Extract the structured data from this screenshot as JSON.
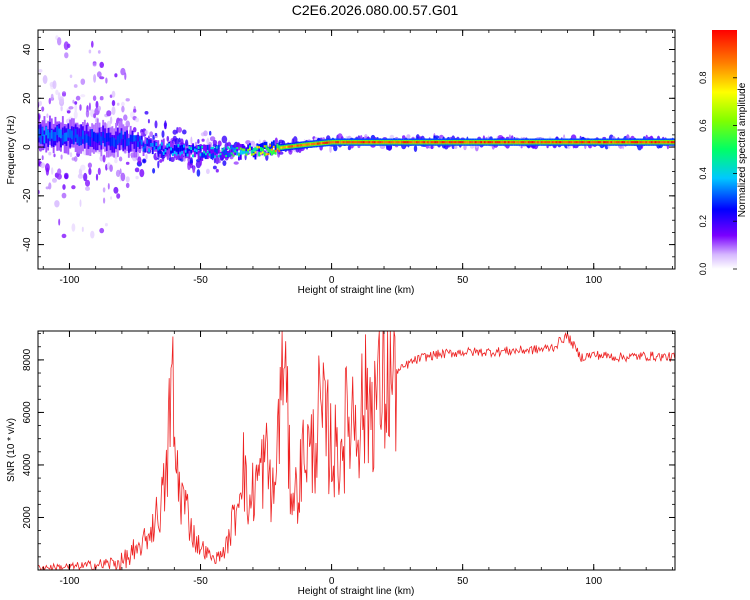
{
  "figure": {
    "title": "C2E6.2026.080.00.57.G01"
  },
  "colors": {
    "snr_line": "#ee2222",
    "spectrogram_peak": "#ff0000",
    "frame": "#000000"
  },
  "chart_data": [
    {
      "type": "heatmap",
      "xlabel": "Height of straight line (km)",
      "ylabel": "Frequency (Hz)",
      "xlim": [
        -112,
        131
      ],
      "ylim": [
        -50,
        48
      ],
      "xticks": [
        -100,
        -50,
        0,
        50,
        100
      ],
      "xtick_labels": [
        "-100",
        "-50",
        "0",
        "50",
        "100"
      ],
      "yticks": [
        -40,
        -20,
        0,
        20,
        40
      ],
      "ytick_labels": [
        "-40",
        "-20",
        "0",
        "20",
        "40"
      ],
      "colorbar": {
        "label": "Normalized spectral amplitude",
        "colormap": "rainbow",
        "range": [
          0,
          1
        ],
        "ticks": [
          0.0,
          0.2,
          0.4,
          0.6,
          0.8
        ],
        "tick_labels": [
          "0.0",
          "0.2",
          "0.4",
          "0.6",
          "0.8"
        ]
      },
      "ridge": [
        {
          "x": -104,
          "f": 5,
          "amp": 0.35
        },
        {
          "x": -92,
          "f": 4,
          "amp": 0.3
        },
        {
          "x": -80,
          "f": 3,
          "amp": 0.3
        },
        {
          "x": -72,
          "f": 1,
          "amp": 0.35
        },
        {
          "x": -62,
          "f": -1,
          "amp": 0.4
        },
        {
          "x": -50,
          "f": -2,
          "amp": 0.45
        },
        {
          "x": -40,
          "f": -2,
          "amp": 0.5
        },
        {
          "x": -32,
          "f": -2,
          "amp": 0.7
        },
        {
          "x": -25,
          "f": -1,
          "amp": 0.9
        },
        {
          "x": -18,
          "f": 0,
          "amp": 0.9
        },
        {
          "x": -10,
          "f": 1,
          "amp": 0.95
        },
        {
          "x": 0,
          "f": 2,
          "amp": 1.0
        },
        {
          "x": 30,
          "f": 2,
          "amp": 1.0
        },
        {
          "x": 60,
          "f": 2,
          "amp": 1.0
        },
        {
          "x": 90,
          "f": 2,
          "amp": 1.0
        },
        {
          "x": 131,
          "f": 2,
          "amp": 1.0
        }
      ],
      "scatter_extent_hz": [
        {
          "x": -110,
          "half_width": 48
        },
        {
          "x": -85,
          "half_width": 40
        },
        {
          "x": -70,
          "half_width": 14
        },
        {
          "x": -50,
          "half_width": 10
        },
        {
          "x": -30,
          "half_width": 6
        },
        {
          "x": -20,
          "half_width": 3
        },
        {
          "x": 0,
          "half_width": 3
        },
        {
          "x": 131,
          "half_width": 2
        }
      ]
    },
    {
      "type": "line",
      "xlabel": "Height of straight line (km)",
      "ylabel": "SNR (10 * v/v)",
      "xlim": [
        -112,
        131
      ],
      "ylim": [
        0,
        9100
      ],
      "xticks": [
        -100,
        -50,
        0,
        50,
        100
      ],
      "xtick_labels": [
        "-100",
        "-50",
        "0",
        "50",
        "100"
      ],
      "yticks": [
        2000,
        4000,
        6000,
        8000
      ],
      "ytick_labels": [
        "2000",
        "4000",
        "6000",
        "8000"
      ],
      "series": [
        {
          "x": [
            -112,
            -100,
            -90,
            -80,
            -75,
            -70,
            -66,
            -63,
            -61,
            -60,
            -58,
            -55,
            -52,
            -48,
            -45,
            -42,
            -40,
            -36,
            -34,
            -32,
            -30,
            -28,
            -25,
            -22,
            -20,
            -18,
            -16,
            -14,
            -12,
            -10,
            -8,
            -5,
            -2,
            0,
            2,
            4,
            6,
            8,
            10,
            14,
            18,
            22,
            26,
            30,
            35,
            40,
            45,
            50,
            60,
            70,
            80,
            85,
            88,
            90,
            92,
            95,
            100,
            110,
            120,
            131
          ],
          "y": [
            100,
            120,
            180,
            300,
            600,
            1300,
            2200,
            3300,
            8200,
            4500,
            3100,
            2200,
            1100,
            700,
            400,
            600,
            900,
            2500,
            4600,
            2200,
            3000,
            3500,
            4200,
            2600,
            6000,
            8000,
            3600,
            2800,
            3500,
            5000,
            4200,
            5800,
            5300,
            4700,
            4300,
            5000,
            5600,
            6100,
            5900,
            6400,
            6800,
            7200,
            7600,
            7900,
            8100,
            8200,
            8250,
            8300,
            8300,
            8350,
            8400,
            8500,
            8800,
            8900,
            8600,
            8100,
            8200,
            8100,
            8150,
            8100
          ]
        }
      ]
    }
  ]
}
